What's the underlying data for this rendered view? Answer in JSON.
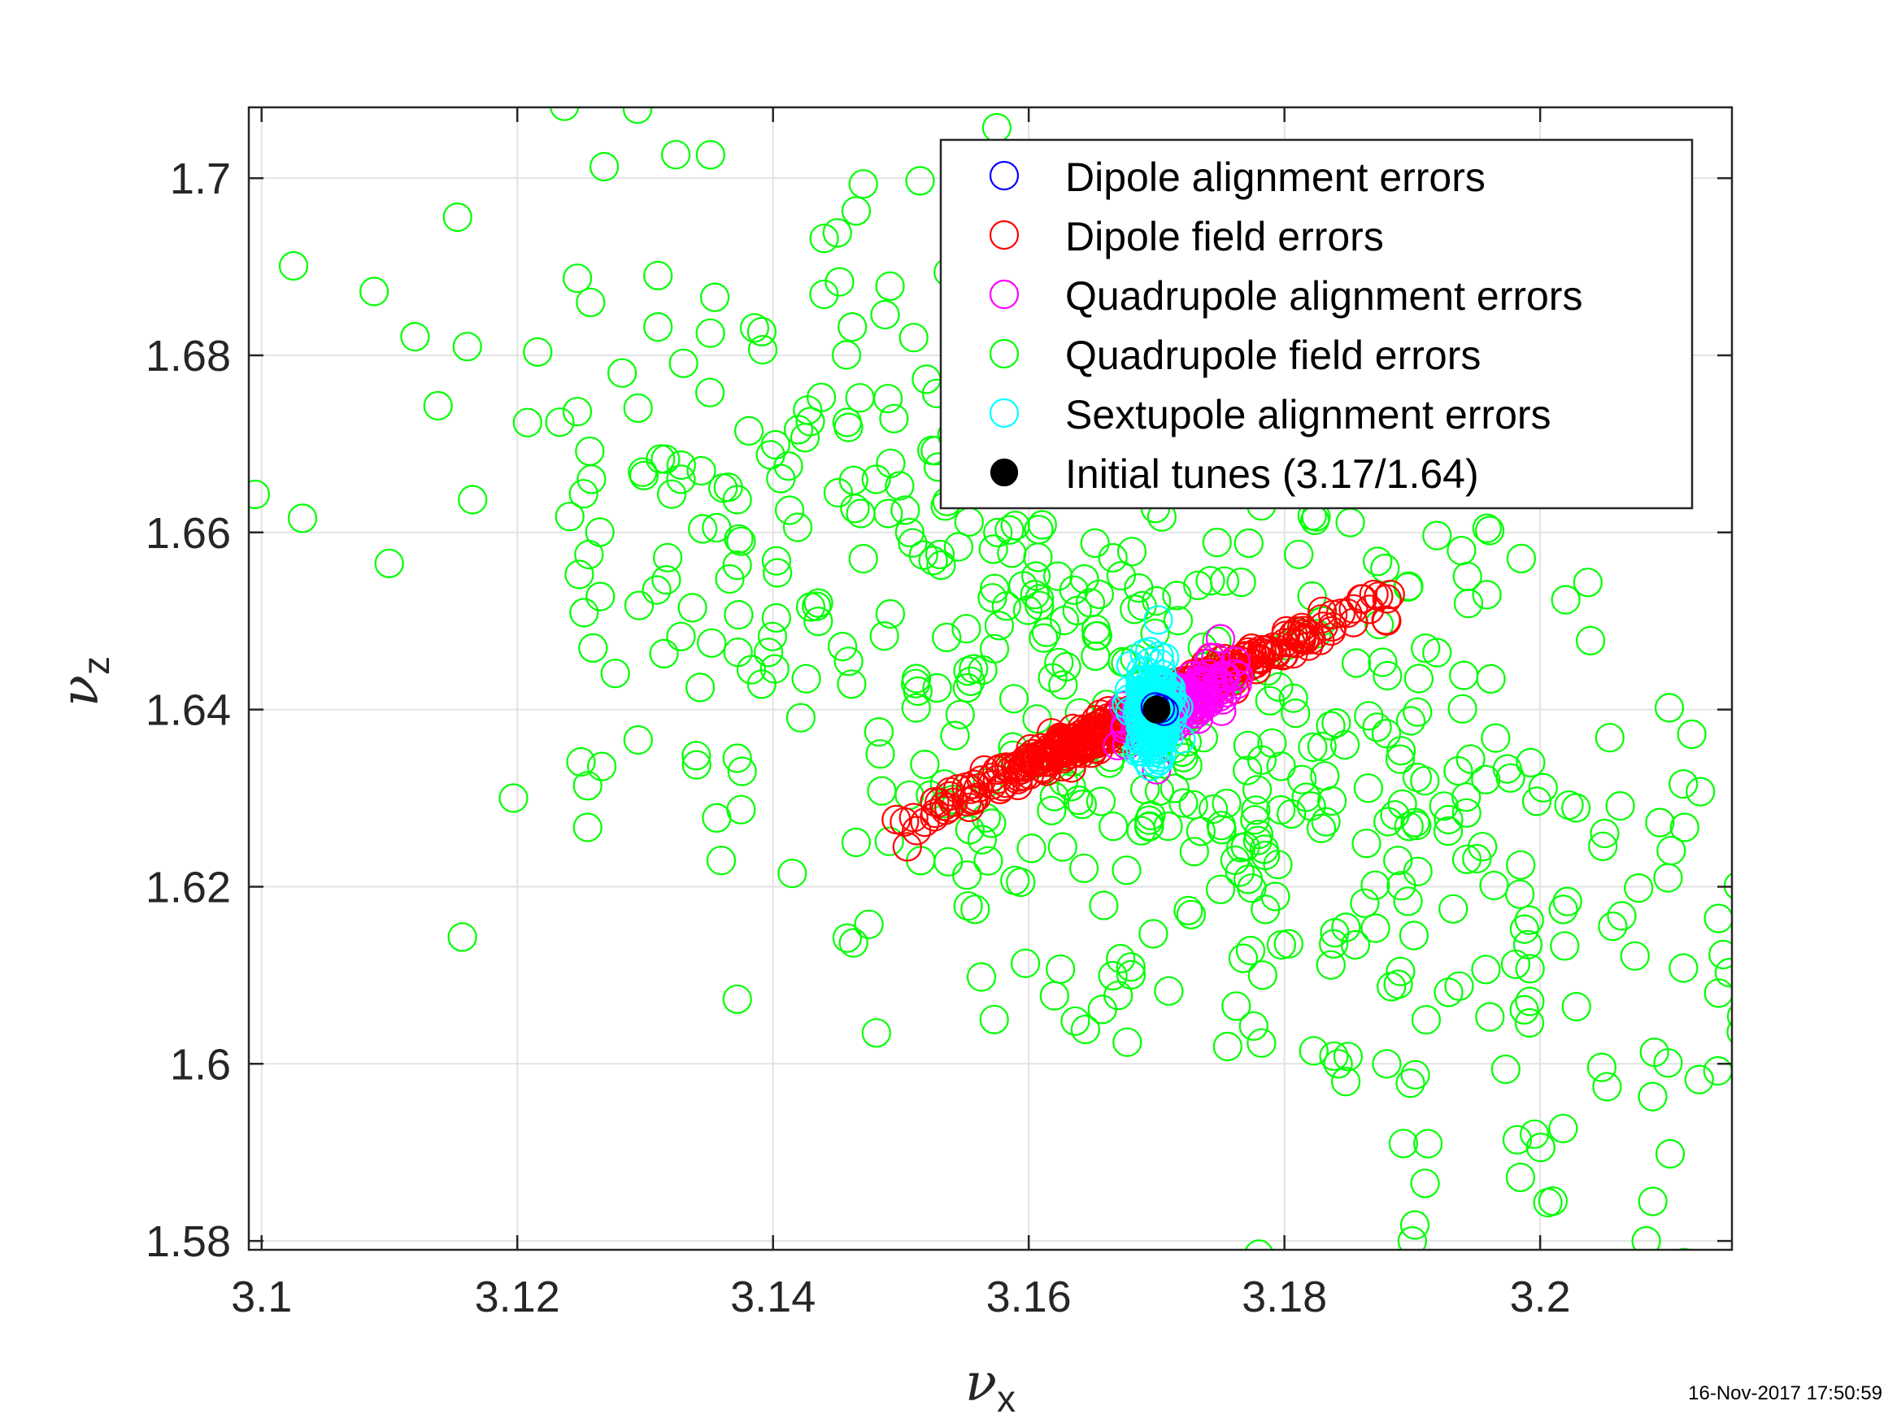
{
  "chart_data": {
    "type": "scatter",
    "xlim": [
      3.099,
      3.215
    ],
    "ylim": [
      1.579,
      1.708
    ],
    "x_ticks": [
      "3.1",
      "3.12",
      "3.14",
      "3.16",
      "3.18",
      "3.2"
    ],
    "y_ticks": [
      "1.58",
      "1.6",
      "1.62",
      "1.64",
      "1.66",
      "1.68",
      "1.7"
    ],
    "xlabel": {
      "symbol": "ν",
      "subscript": "x"
    },
    "ylabel": {
      "symbol": "ν",
      "subscript": "z"
    },
    "grid": true,
    "legend_position": "top-right",
    "series": [
      {
        "name": "Dipole alignment errors",
        "color": "#0000ff",
        "marker": "open-circle",
        "points": [
          [
            3.1703,
            1.6401
          ],
          [
            3.1706,
            1.6398
          ],
          [
            3.1699,
            1.6403
          ]
        ]
      },
      {
        "name": "Dipole field errors",
        "color": "#ff0000",
        "marker": "open-circle",
        "distribution": {
          "center": [
            3.17,
            1.64
          ],
          "band_start": [
            3.151,
            1.6275
          ],
          "band_end": [
            3.187,
            1.652
          ],
          "count": 400
        },
        "points": [
          [
            3.1505,
            1.6245
          ],
          [
            3.151,
            1.6278
          ],
          [
            3.153,
            1.6295
          ],
          [
            3.187,
            1.653
          ],
          [
            3.188,
            1.65
          ],
          [
            3.186,
            1.6525
          ]
        ]
      },
      {
        "name": "Quadrupole alignment errors",
        "color": "#ff00ff",
        "marker": "open-circle",
        "distribution": {
          "center": [
            3.172,
            1.641
          ],
          "spread": [
            0.0035,
            0.004
          ],
          "count": 160
        },
        "points": [
          [
            3.175,
            1.648
          ],
          [
            3.17,
            1.6332
          ]
        ]
      },
      {
        "name": "Quadrupole field errors",
        "color": "#00ff00",
        "marker": "open-circle",
        "distribution": {
          "center": [
            3.17,
            1.64
          ],
          "spread": [
            0.022,
            0.022
          ],
          "anti_correlation": 0.55,
          "count": 540
        },
        "points": [
          [
            3.1294,
            1.7078
          ],
          [
            3.1268,
            1.7013
          ],
          [
            3.0995,
            1.6643
          ],
          [
            3.1025,
            1.6901
          ],
          [
            3.1088,
            1.6872
          ],
          [
            3.112,
            1.6821
          ],
          [
            3.1138,
            1.6743
          ],
          [
            3.1032,
            1.6616
          ],
          [
            3.1165,
            1.6637
          ],
          [
            3.1208,
            1.6724
          ],
          [
            3.1197,
            1.63
          ],
          [
            3.1255,
            1.6267
          ],
          [
            3.1255,
            1.6314
          ],
          [
            3.1247,
            1.6887
          ],
          [
            3.1282,
            1.678
          ],
          [
            3.131,
            1.689
          ],
          [
            3.131,
            1.6832
          ],
          [
            3.133,
            1.6791
          ],
          [
            3.1351,
            1.6825
          ],
          [
            3.1241,
            1.6618
          ],
          [
            3.1258,
            1.666
          ],
          [
            3.1256,
            1.6575
          ],
          [
            3.1312,
            1.6683
          ],
          [
            3.1309,
            1.6535
          ],
          [
            3.1328,
            1.666
          ],
          [
            3.1337,
            1.6515
          ],
          [
            3.1365,
            1.6651
          ],
          [
            3.1372,
            1.6637
          ],
          [
            3.1345,
            1.6604
          ],
          [
            3.1375,
            1.659
          ],
          [
            3.1372,
            1.6563
          ],
          [
            3.1383,
            1.6445
          ],
          [
            3.1372,
            1.6073
          ],
          [
            3.1375,
            1.6287
          ],
          [
            3.1372,
            1.6345
          ],
          [
            3.134,
            1.6348
          ],
          [
            3.1343,
            1.6425
          ],
          [
            3.1415,
            1.6215
          ],
          [
            3.1458,
            1.6142
          ],
          [
            3.1465,
            1.625
          ],
          [
            3.1563,
            1.6098
          ],
          [
            3.1573,
            1.605
          ],
          [
            3.1575,
            1.7057
          ],
          [
            3.1515,
            1.6997
          ],
          [
            3.1465,
            1.6963
          ],
          [
            3.144,
            1.6932
          ],
          [
            3.1452,
            1.6883
          ],
          [
            3.1462,
            1.6832
          ],
          [
            3.1468,
            1.6752
          ],
          [
            3.151,
            1.682
          ],
          [
            3.1402,
            1.6699
          ],
          [
            3.1412,
            1.6675
          ],
          [
            3.1425,
            1.6707
          ],
          [
            3.1492,
            1.6678
          ],
          [
            3.1298,
            1.6668
          ],
          [
            3.1652,
            1.6985
          ],
          [
            3.1678,
            1.6912
          ],
          [
            3.17,
            1.691
          ],
          [
            3.152,
            1.6773
          ],
          [
            3.1528,
            1.6757
          ],
          [
            3.154,
            1.671
          ],
          [
            3.1562,
            1.665
          ],
          [
            3.201,
            1.5845
          ],
          [
            3.2018,
            1.5927
          ],
          [
            3.2083,
            1.58
          ],
          [
            3.2088,
            1.5963
          ],
          [
            3.21,
            1.6001
          ],
          [
            3.2139,
            1.5992
          ],
          [
            3.2148,
            1.6103
          ],
          [
            3.2155,
            1.6201
          ],
          [
            3.21,
            1.621
          ],
          [
            3.2101,
            1.6402
          ],
          [
            3.2112,
            1.6316
          ],
          [
            3.2113,
            1.6267
          ],
          [
            3.202,
            1.6524
          ],
          [
            3.19,
            1.58
          ],
          [
            3.1902,
            1.5818
          ],
          [
            3.191,
            1.5865
          ],
          [
            3.178,
            1.5785
          ],
          [
            3.1842,
            1.6
          ],
          [
            3.188,
            1.6
          ],
          [
            3.1893,
            1.591
          ],
          [
            3.1848,
            1.598
          ]
        ]
      },
      {
        "name": "Sextupole alignment errors",
        "color": "#00ffff",
        "marker": "open-circle",
        "distribution": {
          "center": [
            3.1698,
            1.6397
          ],
          "spread": [
            0.0012,
            0.0045
          ],
          "count": 200
        },
        "points": [
          [
            3.168,
            1.645
          ],
          [
            3.17,
            1.634
          ]
        ]
      },
      {
        "name": "Initial tunes (3.17/1.64)",
        "color": "#000000",
        "marker": "filled-circle",
        "points": [
          [
            3.17,
            1.64
          ]
        ]
      }
    ]
  },
  "timestamp": "16-Nov-2017 17:50:59"
}
